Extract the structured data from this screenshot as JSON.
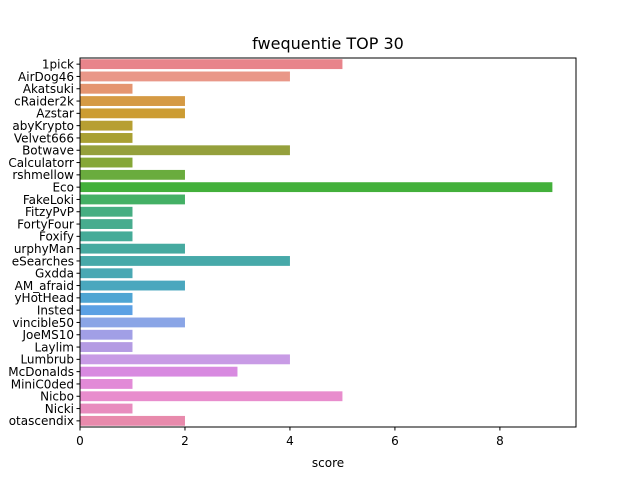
{
  "chart_data": {
    "type": "bar",
    "orientation": "horizontal",
    "title": "fwequentie TOP 30",
    "xlabel": "score",
    "ylabel": "",
    "xlim": [
      0,
      9.45
    ],
    "xticks": [
      0,
      2,
      4,
      6,
      8
    ],
    "grid": false,
    "legend": "none",
    "categories": [
      "1pick",
      "AirDog46",
      "Akatsuki",
      "cRaider2k",
      "Azstar",
      "abyKrypto",
      "Velvet666",
      "Botwave",
      "Calculatorr",
      "rshmellow",
      "Eco",
      "FakeLoki",
      "FitzyPvP",
      "FortyFour",
      "Foxify",
      "urphyMan",
      "eSearches",
      "Gxdda",
      "AM_afraid",
      "yHotHead",
      "Insted",
      "vincible50",
      "JoeMS10",
      "Laylim",
      "Lumbrub",
      "McDonalds",
      "MiniC0ded",
      "Nicbo",
      "Nicki",
      "otascendix"
    ],
    "values": [
      5,
      4,
      1,
      2,
      2,
      1,
      1,
      4,
      1,
      2,
      9,
      2,
      1,
      1,
      1,
      2,
      4,
      1,
      2,
      1,
      1,
      2,
      1,
      1,
      4,
      3,
      1,
      5,
      1,
      2
    ],
    "colors": [
      "#e8848b",
      "#e99788",
      "#e59570",
      "#d59a44",
      "#cc9c33",
      "#b79f32",
      "#a9a032",
      "#95a03c",
      "#85a737",
      "#6aac3e",
      "#43b03b",
      "#44b065",
      "#46ae82",
      "#47ac8e",
      "#45ab98",
      "#46aaa0",
      "#47a9a9",
      "#49a8b3",
      "#4aa7be",
      "#4ea5d3",
      "#5ba0e4",
      "#8aa5e6",
      "#a19fe6",
      "#b49be3",
      "#c89be5",
      "#d88ae0",
      "#e28ad7",
      "#e88dcd",
      "#e88cbe",
      "#e88aac"
    ]
  }
}
